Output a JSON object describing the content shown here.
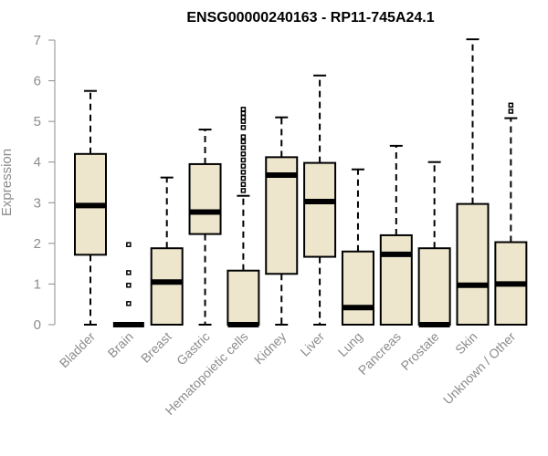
{
  "chart_data": {
    "type": "boxplot",
    "title": "ENSG00000240163 - RP11-745A24.1",
    "xlabel": "",
    "ylabel": "Expression",
    "ylim": [
      0,
      7
    ],
    "yticks": [
      0,
      1,
      2,
      3,
      4,
      5,
      6,
      7
    ],
    "grid": false,
    "legend": "none",
    "box_fill": "#ede6cc",
    "categories": [
      "Bladder",
      "Brain",
      "Breast",
      "Gastric",
      "Hematopoietic cells",
      "Kidney",
      "Liver",
      "Lung",
      "Pancreas",
      "Prostate",
      "Skin",
      "Unknown / Other"
    ],
    "boxes": [
      {
        "min": 0.0,
        "q1": 1.72,
        "median": 2.93,
        "q3": 4.2,
        "max": 5.75,
        "outliers": []
      },
      {
        "min": 0.0,
        "q1": 0.0,
        "median": 0.0,
        "q3": 0.0,
        "max": 0.0,
        "outliers": [
          0.52,
          0.97,
          1.28,
          1.97
        ]
      },
      {
        "min": 0.0,
        "q1": 0.0,
        "median": 1.05,
        "q3": 1.88,
        "max": 3.62,
        "outliers": []
      },
      {
        "min": 0.0,
        "q1": 2.23,
        "median": 2.77,
        "q3": 3.95,
        "max": 4.8,
        "outliers": []
      },
      {
        "min": 0.0,
        "q1": 0.0,
        "median": 0.0,
        "q3": 1.33,
        "max": 3.17,
        "outliers": [
          3.3,
          3.45,
          3.6,
          3.75,
          3.9,
          4.05,
          4.2,
          4.35,
          4.5,
          4.62,
          4.85,
          5.0,
          5.1,
          5.2,
          5.3
        ]
      },
      {
        "min": 0.0,
        "q1": 1.25,
        "median": 3.68,
        "q3": 4.12,
        "max": 5.1,
        "outliers": []
      },
      {
        "min": 0.0,
        "q1": 1.67,
        "median": 3.03,
        "q3": 3.98,
        "max": 6.13,
        "outliers": []
      },
      {
        "min": 0.0,
        "q1": 0.0,
        "median": 0.42,
        "q3": 1.8,
        "max": 3.82,
        "outliers": []
      },
      {
        "min": 0.0,
        "q1": 0.0,
        "median": 1.73,
        "q3": 2.2,
        "max": 4.4,
        "outliers": []
      },
      {
        "min": 0.0,
        "q1": 0.0,
        "median": 0.0,
        "q3": 1.88,
        "max": 4.0,
        "outliers": []
      },
      {
        "min": 0.0,
        "q1": 0.0,
        "median": 0.97,
        "q3": 2.97,
        "max": 7.02,
        "outliers": []
      },
      {
        "min": 0.0,
        "q1": 0.0,
        "median": 1.0,
        "q3": 2.03,
        "max": 5.08,
        "outliers": [
          5.25,
          5.4
        ]
      }
    ]
  }
}
